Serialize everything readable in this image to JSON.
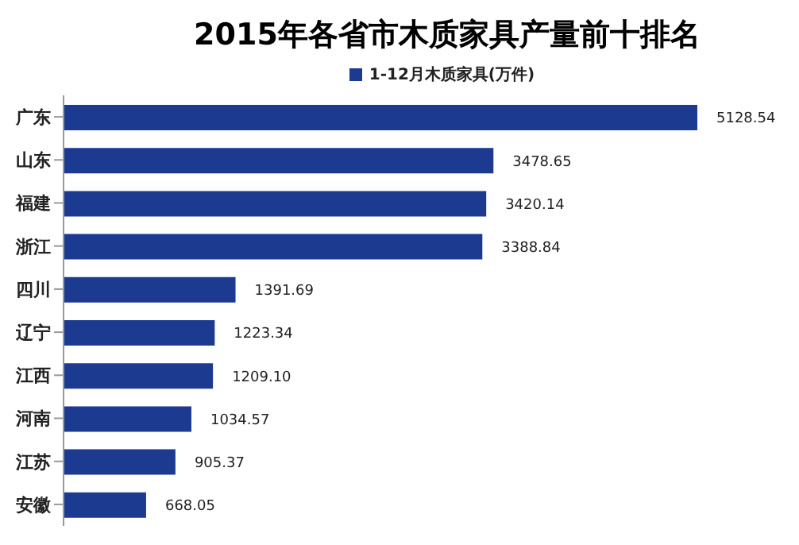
{
  "chart_data": {
    "type": "bar",
    "orientation": "horizontal",
    "title": "2015年各省市木质家具产量前十排名",
    "categories": [
      "广东",
      "山东",
      "福建",
      "浙江",
      "四川",
      "辽宁",
      "江西",
      "河南",
      "江苏",
      "安徽"
    ],
    "series": [
      {
        "name": "1-12月木质家具(万件)",
        "color": "#1c3a8f",
        "values": [
          5128.54,
          3478.65,
          3420.14,
          3388.84,
          1391.69,
          1223.34,
          1209.1,
          1034.57,
          905.37,
          668.05
        ],
        "value_labels": [
          "5128.54",
          "3478.65",
          "3420.14",
          "3388.84",
          "1391.69",
          "1223.34",
          "1209.10",
          "1034.57",
          "905.37",
          "668.05"
        ]
      }
    ],
    "legend": "top"
  }
}
